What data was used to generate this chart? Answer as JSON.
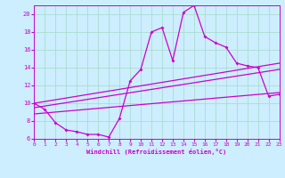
{
  "background_color": "#cceeff",
  "grid_color": "#aaddcc",
  "line_color": "#cc00cc",
  "xlabel": "Windchill (Refroidissement éolien,°C)",
  "xlim": [
    0,
    23
  ],
  "ylim": [
    6,
    21
  ],
  "yticks": [
    6,
    8,
    10,
    12,
    14,
    16,
    18,
    20
  ],
  "xticks": [
    0,
    1,
    2,
    3,
    4,
    5,
    6,
    7,
    8,
    9,
    10,
    11,
    12,
    13,
    14,
    15,
    16,
    17,
    18,
    19,
    20,
    21,
    22,
    23
  ],
  "series": [
    [
      0,
      10
    ],
    [
      1,
      9.3
    ],
    [
      2,
      7.8
    ],
    [
      3,
      7.0
    ],
    [
      4,
      6.8
    ],
    [
      5,
      6.5
    ],
    [
      6,
      6.5
    ],
    [
      7,
      6.2
    ],
    [
      8,
      8.3
    ],
    [
      9,
      12.5
    ],
    [
      10,
      13.8
    ],
    [
      11,
      18.0
    ],
    [
      12,
      18.5
    ],
    [
      13,
      14.8
    ],
    [
      14,
      20.2
    ],
    [
      15,
      21.0
    ],
    [
      16,
      17.5
    ],
    [
      17,
      16.8
    ],
    [
      18,
      16.3
    ],
    [
      19,
      14.5
    ],
    [
      20,
      14.2
    ],
    [
      21,
      14.0
    ],
    [
      22,
      10.8
    ],
    [
      23,
      11.0
    ]
  ],
  "line2": [
    [
      0,
      10.0
    ],
    [
      23,
      14.5
    ]
  ],
  "line3": [
    [
      0,
      9.5
    ],
    [
      23,
      13.8
    ]
  ],
  "line4": [
    [
      0,
      8.8
    ],
    [
      23,
      11.2
    ]
  ]
}
